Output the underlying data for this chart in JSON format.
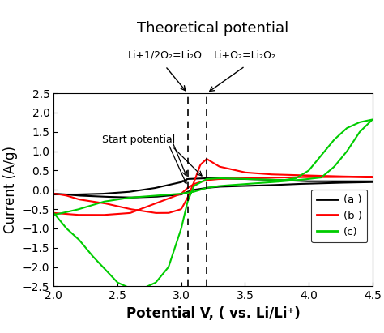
{
  "title": "Theoretical potential",
  "xlabel": "Potential V, ( vs. Li/Li⁺)",
  "ylabel": "Current (A/g)",
  "xlim": [
    2.0,
    4.5
  ],
  "ylim": [
    -2.5,
    2.5
  ],
  "xticks": [
    2.0,
    2.5,
    3.0,
    3.5,
    4.0,
    4.5
  ],
  "yticks": [
    -2.5,
    -2.0,
    -1.5,
    -1.0,
    -0.5,
    0.0,
    0.5,
    1.0,
    1.5,
    2.0,
    2.5
  ],
  "vline1": 3.05,
  "vline2": 3.2,
  "ann1_text": "Li+1/2O₂=Li₂O",
  "ann2_text": "Li+O₂=Li₂O₂",
  "start_label": "Start potential",
  "legend_a": "(a )",
  "legend_b": "(b )",
  "legend_c": "(c)",
  "color_a": "black",
  "color_b": "red",
  "color_c": "#00cc00",
  "lw": 1.5,
  "title_fontsize": 13,
  "label_fontsize": 12,
  "tick_fontsize": 10,
  "ann_fontsize": 9
}
